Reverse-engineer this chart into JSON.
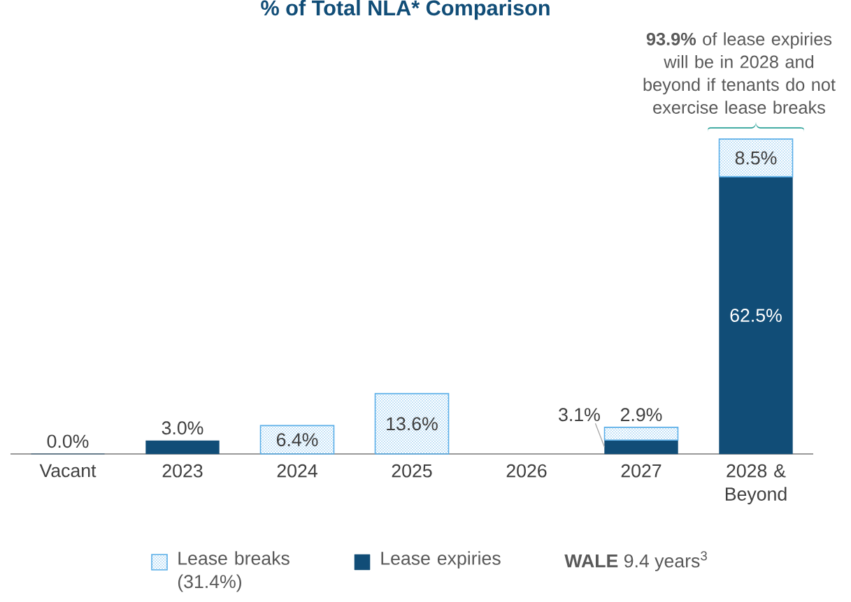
{
  "chart_data": {
    "type": "bar",
    "title": "% of Total NLA* Comparison",
    "categories": [
      "Vacant",
      "2023",
      "2024",
      "2025",
      "2026",
      "2027",
      "2028 & Beyond"
    ],
    "stacked": true,
    "tick_labels": "x",
    "legend": "bottom",
    "series": [
      {
        "name": "Lease expiries",
        "color": "#114d77",
        "values": [
          0.0,
          3.0,
          null,
          null,
          null,
          3.1,
          62.5
        ],
        "value_labels": [
          "0.0%",
          "3.0%",
          null,
          null,
          null,
          "3.1%",
          "62.5%"
        ]
      },
      {
        "name": "Lease breaks (31.4%)",
        "color": "#5aaee8",
        "values": [
          null,
          null,
          6.4,
          13.6,
          null,
          2.9,
          8.5
        ],
        "value_labels": [
          null,
          null,
          "6.4%",
          "13.6%",
          null,
          "2.9%",
          "8.5%"
        ]
      }
    ],
    "annotations": [
      {
        "text": "**93.9%** of lease expiries will be in 2028 and beyond if tenants do not exercise lease breaks",
        "x": "2028 & Beyond",
        "y": 71.0
      },
      "**WALE** 9.4 years$^{3}$"
    ]
  }
}
